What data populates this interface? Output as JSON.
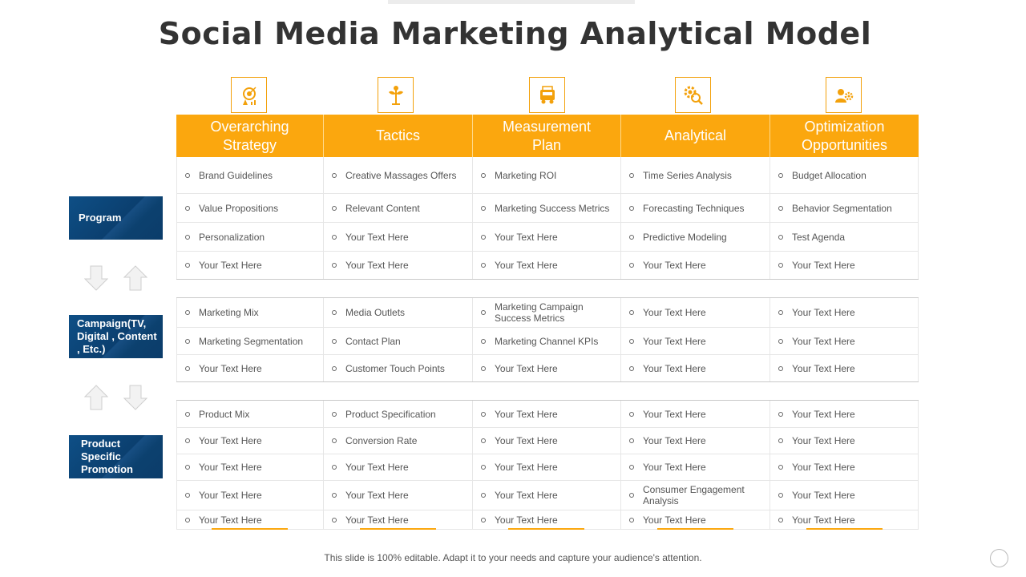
{
  "title": "Social Media Marketing Analytical Model",
  "accent_color": "#fba70e",
  "label_color": "#0b3f6f",
  "columns": [
    {
      "label": "Overarching Strategy",
      "icon": "target-icon"
    },
    {
      "label": "Tactics",
      "icon": "plant-icon"
    },
    {
      "label": "Measurement Plan",
      "icon": "truck-icon"
    },
    {
      "label": "Analytical",
      "icon": "gear-search-icon"
    },
    {
      "label": "Optimization Opportunities",
      "icon": "user-gear-icon"
    }
  ],
  "sections": [
    {
      "label": "Program",
      "rows": [
        [
          "Brand Guidelines",
          "Creative Massages Offers",
          "Marketing ROI",
          "Time Series Analysis",
          "Budget Allocation"
        ],
        [
          "Value Propositions",
          "Relevant Content",
          "Marketing Success Metrics",
          "Forecasting Techniques",
          "Behavior Segmentation"
        ],
        [
          "Personalization",
          "Your Text Here",
          "Your Text Here",
          "Predictive Modeling",
          "Test Agenda"
        ],
        [
          "Your Text Here",
          "Your Text Here",
          "Your Text Here",
          "Your Text Here",
          "Your Text Here"
        ]
      ]
    },
    {
      "label": "Campaign(TV, Digital , Content , Etc.)",
      "rows": [
        [
          "Marketing Mix",
          "Media Outlets",
          "Marketing Campaign Success Metrics",
          "Your Text Here",
          "Your Text Here"
        ],
        [
          "Marketing Segmentation",
          "Contact Plan",
          "Marketing Channel KPIs",
          "Your Text Here",
          "Your Text Here"
        ],
        [
          "Your Text Here",
          "Customer Touch Points",
          "Your Text Here",
          "Your Text Here",
          "Your Text Here"
        ]
      ]
    },
    {
      "label": "Product Specific Promotion",
      "rows": [
        [
          "Product Mix",
          "Product Specification",
          "Your Text Here",
          "Your Text Here",
          "Your Text Here"
        ],
        [
          "Your Text Here",
          "Conversion Rate",
          "Your Text Here",
          "Your Text Here",
          "Your Text Here"
        ],
        [
          "Your Text Here",
          "Your Text Here",
          "Your Text Here",
          "Your Text Here",
          "Your Text Here"
        ],
        [
          "Your Text Here",
          "Your Text Here",
          "Your Text Here",
          "Consumer Engagement Analysis",
          "Your Text Here"
        ],
        [
          "Your Text Here",
          "Your Text Here",
          "Your Text Here",
          "Your Text Here",
          "Your Text Here"
        ]
      ]
    }
  ],
  "footer": "This slide is 100% editable. Adapt it to your needs and capture your audience's attention."
}
